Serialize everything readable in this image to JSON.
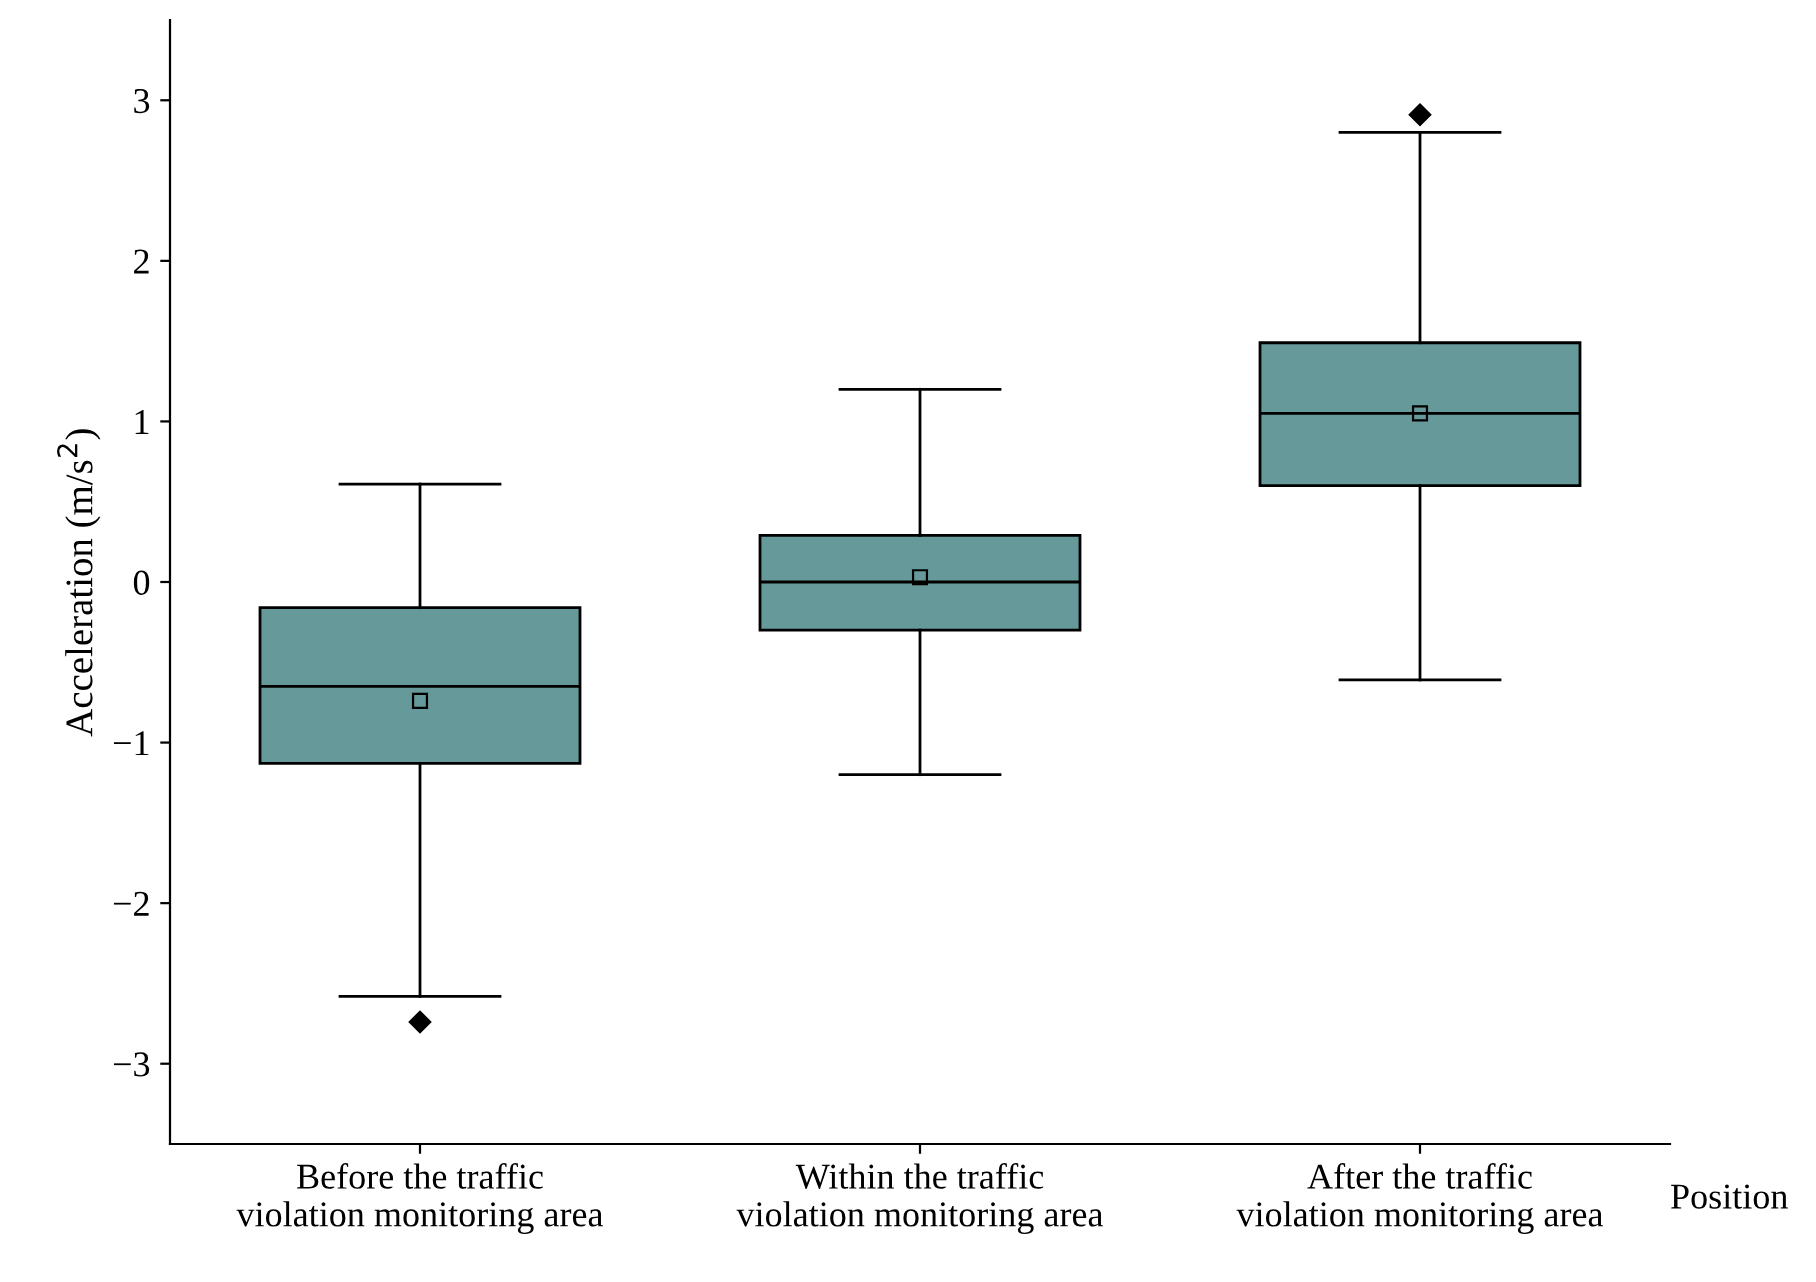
{
  "chart_data": {
    "type": "box",
    "xlabel": "Position",
    "ylabel": "Acceleration (m/s$^{2}$)",
    "categories": [
      "Before the traffic\nviolation monitoring area",
      "Within the traffic\nviolation monitoring area",
      "After the traffic\nviolation monitoring area"
    ],
    "color": "#669999",
    "boxes": [
      {
        "low": -2.58,
        "q1": -1.13,
        "median": -0.65,
        "q3": -0.16,
        "high": 0.61,
        "mean": -0.74,
        "outliers": [
          -2.74
        ]
      },
      {
        "low": -1.2,
        "q1": -0.3,
        "median": 0,
        "q3": 0.29,
        "high": 1.2,
        "mean": 0.03
      },
      {
        "low": -0.61,
        "q1": 0.6,
        "median": 1.05,
        "q3": 1.49,
        "high": 2.8,
        "mean": 1.05,
        "outliers": [
          2.91
        ]
      }
    ],
    "ylim": [
      -3.5,
      3.5
    ],
    "yticks": [
      {
        "value": -3,
        "label": "−3"
      },
      {
        "value": -2,
        "label": "−2"
      },
      {
        "value": -1,
        "label": "−1"
      },
      0,
      1,
      2,
      3
    ]
  }
}
